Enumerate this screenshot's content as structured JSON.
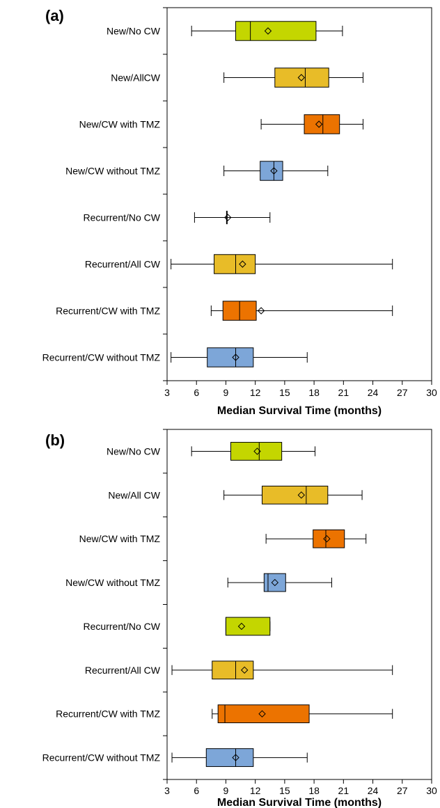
{
  "chart_data": [
    {
      "type": "box",
      "panel_label": "(a)",
      "xlabel": "Median Survival Time (months)",
      "xlim": [
        3,
        30
      ],
      "xticks": [
        3,
        6,
        9,
        12,
        15,
        18,
        21,
        24,
        27,
        30
      ],
      "categories": [
        "New/No CW",
        "New/AllCW",
        "New/CW with TMZ",
        "New/CW without TMZ",
        "Recurrent/No CW",
        "Recurrent/All CW",
        "Recurrent/CW with TMZ",
        "Recurrent/CW without TMZ"
      ],
      "boxes": [
        {
          "min": 5.5,
          "q1": 10.0,
          "median": 11.5,
          "q3": 18.2,
          "max": 20.9,
          "mean": 13.3,
          "color": "#c4d600"
        },
        {
          "min": 8.8,
          "q1": 14.0,
          "median": 17.1,
          "q3": 19.5,
          "max": 23.0,
          "mean": 16.7,
          "color": "#e8bc28"
        },
        {
          "min": 12.6,
          "q1": 17.0,
          "median": 18.9,
          "q3": 20.6,
          "max": 23.0,
          "mean": 18.5,
          "color": "#ec7300"
        },
        {
          "min": 8.8,
          "q1": 12.5,
          "median": 13.9,
          "q3": 14.8,
          "max": 19.4,
          "mean": 13.9,
          "color": "#7da6d8"
        },
        {
          "min": 5.8,
          "q1": 9.1,
          "median": 9.1,
          "q3": 9.1,
          "max": 13.5,
          "mean": 9.2,
          "color": "#ffffff"
        },
        {
          "min": 3.4,
          "q1": 7.8,
          "median": 10.0,
          "q3": 12.0,
          "max": 26.0,
          "mean": 10.7,
          "color": "#e8bc28"
        },
        {
          "min": 7.5,
          "q1": 8.7,
          "median": 10.4,
          "q3": 12.1,
          "max": 26.0,
          "mean": 12.6,
          "color": "#ec7300"
        },
        {
          "min": 3.4,
          "q1": 7.1,
          "median": 10.0,
          "q3": 11.8,
          "max": 17.3,
          "mean": 10.0,
          "color": "#7da6d8"
        }
      ]
    },
    {
      "type": "box",
      "panel_label": "(b)",
      "xlabel": "Median Survival Time (months)",
      "xlim": [
        3,
        30
      ],
      "xticks": [
        3,
        6,
        9,
        12,
        15,
        18,
        21,
        24,
        27,
        30
      ],
      "categories": [
        "New/No CW",
        "New/All CW",
        "New/CW with TMZ",
        "New/CW without TMZ",
        "Recurrent/No CW",
        "Recurrent/All CW",
        "Recurrent/CW with TMZ",
        "Recurrent/CW without TMZ"
      ],
      "boxes": [
        {
          "min": 5.5,
          "q1": 9.5,
          "median": 12.4,
          "q3": 14.7,
          "max": 18.1,
          "mean": 12.2,
          "color": "#c4d600"
        },
        {
          "min": 8.8,
          "q1": 12.7,
          "median": 17.2,
          "q3": 19.4,
          "max": 22.9,
          "mean": 16.7,
          "color": "#e8bc28"
        },
        {
          "min": 13.1,
          "q1": 17.9,
          "median": 19.2,
          "q3": 21.1,
          "max": 23.3,
          "mean": 19.3,
          "color": "#ec7300"
        },
        {
          "min": 9.2,
          "q1": 12.9,
          "median": 13.3,
          "q3": 15.1,
          "max": 19.8,
          "mean": 14.0,
          "color": "#7da6d8"
        },
        {
          "min": 9.0,
          "q1": 9.0,
          "median": 9.0,
          "q3": 13.5,
          "max": 13.5,
          "mean": 10.6,
          "color": "#c4d600"
        },
        {
          "min": 3.5,
          "q1": 7.6,
          "median": 10.0,
          "q3": 11.8,
          "max": 26.0,
          "mean": 10.9,
          "color": "#e8bc28"
        },
        {
          "min": 7.6,
          "q1": 8.2,
          "median": 8.9,
          "q3": 17.5,
          "max": 26.0,
          "mean": 12.7,
          "color": "#ec7300"
        },
        {
          "min": 3.5,
          "q1": 7.0,
          "median": 10.0,
          "q3": 11.8,
          "max": 17.3,
          "mean": 10.0,
          "color": "#7da6d8"
        }
      ]
    }
  ]
}
